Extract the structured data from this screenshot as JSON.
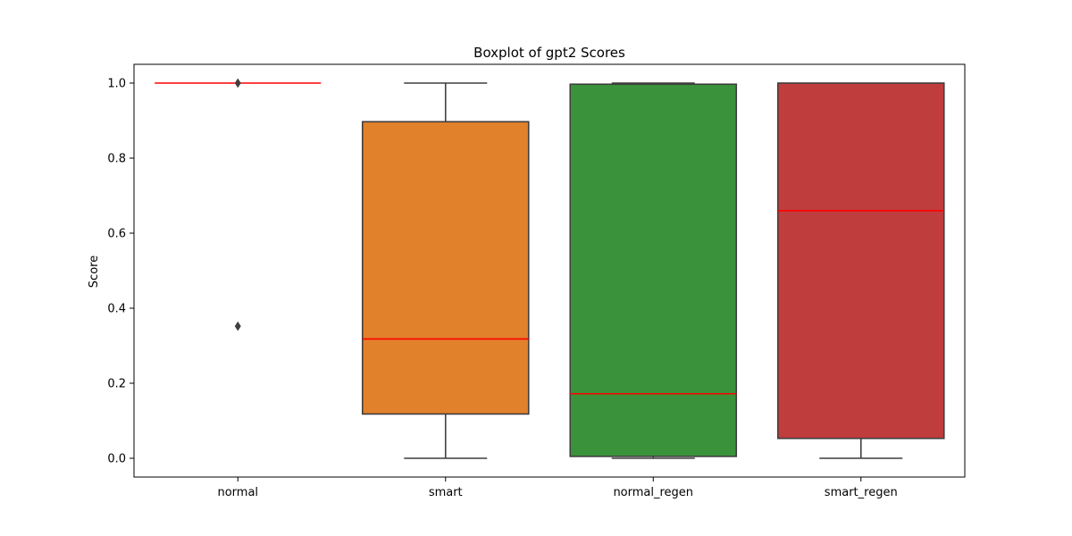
{
  "chart_data": {
    "type": "box",
    "title": "Boxplot of gpt2 Scores",
    "xlabel": "",
    "ylabel": "Score",
    "ylim": [
      -0.05,
      1.05
    ],
    "yticks": [
      "0.0",
      "0.2",
      "0.4",
      "0.6",
      "0.8",
      "1.0"
    ],
    "grid": false,
    "categories": [
      "normal",
      "smart",
      "normal_regen",
      "smart_regen"
    ],
    "boxes": [
      {
        "category": "normal",
        "color": "#3a76af",
        "whisker_low": 1.0,
        "q1": 1.0,
        "median": 1.0,
        "q3": 1.0,
        "whisker_high": 1.0,
        "outliers": [
          1.0,
          0.352
        ]
      },
      {
        "category": "smart",
        "color": "#e1812c",
        "whisker_low": 0.0,
        "q1": 0.118,
        "median": 0.318,
        "q3": 0.897,
        "whisker_high": 1.0,
        "outliers": []
      },
      {
        "category": "normal_regen",
        "color": "#3a923a",
        "whisker_low": 0.0,
        "q1": 0.005,
        "median": 0.172,
        "q3": 0.997,
        "whisker_high": 1.0,
        "outliers": []
      },
      {
        "category": "smart_regen",
        "color": "#c03d3e",
        "whisker_low": 0.0,
        "q1": 0.053,
        "median": 0.66,
        "q3": 1.0,
        "whisker_high": 1.0,
        "outliers": []
      }
    ],
    "median_color": "#ff0000",
    "edge_color": "#3f3f3f"
  }
}
